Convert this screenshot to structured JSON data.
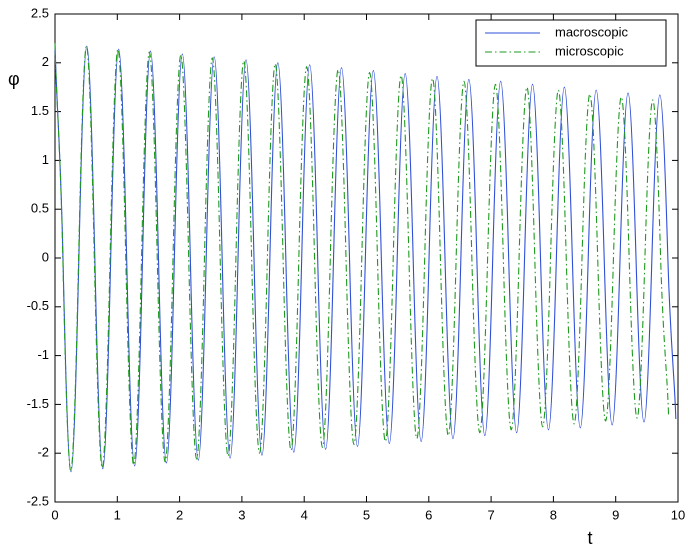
{
  "chart_data": {
    "type": "line",
    "xlabel": "t",
    "ylabel": "φ",
    "xlim": [
      0,
      10
    ],
    "ylim": [
      -2.5,
      2.5
    ],
    "xticks": [
      0,
      1,
      2,
      3,
      4,
      5,
      6,
      7,
      8,
      9,
      10
    ],
    "yticks": [
      -2.5,
      -2,
      -1.5,
      -1,
      -0.5,
      0,
      0.5,
      1,
      1.5,
      2,
      2.5
    ],
    "legend": "upper right",
    "series": [
      {
        "name": "macroscopic",
        "color": "#2f4fd8",
        "style": "solid",
        "x": [
          0,
          0.128,
          0.256,
          0.383,
          0.511,
          0.639,
          0.767,
          0.894,
          1.022,
          1.15,
          1.278,
          1.405,
          1.533,
          1.661,
          1.789,
          1.916,
          2.044,
          2.172,
          2.3,
          2.427,
          2.555,
          2.683,
          2.811,
          2.938,
          3.066,
          3.194,
          3.322,
          3.449,
          3.577,
          3.705,
          3.833,
          3.96,
          4.088,
          4.216,
          4.344,
          4.471,
          4.599,
          4.727,
          4.855,
          4.982,
          5.11,
          5.238,
          5.366,
          5.493,
          5.621,
          5.749,
          5.877,
          6.004,
          6.132,
          6.26,
          6.388,
          6.515,
          6.643,
          6.771,
          6.899,
          7.026,
          7.154,
          7.282,
          7.41,
          7.537,
          7.665,
          7.793,
          7.921,
          8.048,
          8.176,
          8.304,
          8.432,
          8.559,
          8.687,
          8.815,
          8.943,
          9.07,
          9.198,
          9.326,
          9.454,
          9.581,
          9.709,
          9.837,
          9.965
        ],
        "values": [
          2.2,
          0,
          -2.19,
          0,
          2.17,
          0,
          -2.16,
          0,
          2.14,
          0,
          -2.13,
          0,
          2.12,
          0,
          -2.1,
          0,
          2.09,
          0,
          -2.07,
          0,
          2.06,
          0,
          -2.05,
          0,
          2.03,
          0,
          -2.02,
          0,
          2.0,
          0,
          -1.99,
          0,
          1.98,
          0,
          -1.96,
          0,
          1.95,
          0,
          -1.93,
          0,
          1.92,
          0,
          -1.9,
          0,
          1.89,
          0,
          -1.88,
          0,
          1.86,
          0,
          -1.85,
          0,
          1.83,
          0,
          -1.82,
          0,
          1.81,
          0,
          -1.79,
          0,
          1.78,
          0,
          -1.76,
          0,
          1.75,
          0,
          -1.74,
          0,
          1.72,
          0,
          -1.71,
          0,
          1.69,
          0,
          -1.68,
          0,
          1.67,
          0,
          -1.65
        ]
      },
      {
        "name": "microscopic",
        "color": "#1f9a1f",
        "style": "dashdot",
        "x": [
          0,
          0.126,
          0.253,
          0.379,
          0.505,
          0.631,
          0.758,
          0.884,
          1.01,
          1.136,
          1.263,
          1.389,
          1.515,
          1.641,
          1.768,
          1.894,
          2.02,
          2.146,
          2.273,
          2.399,
          2.525,
          2.651,
          2.778,
          2.904,
          3.03,
          3.156,
          3.283,
          3.409,
          3.535,
          3.661,
          3.788,
          3.914,
          4.04,
          4.166,
          4.293,
          4.419,
          4.545,
          4.671,
          4.798,
          4.924,
          5.05,
          5.176,
          5.303,
          5.429,
          5.555,
          5.681,
          5.808,
          5.934,
          6.06,
          6.186,
          6.313,
          6.439,
          6.565,
          6.691,
          6.818,
          6.944,
          7.07,
          7.196,
          7.323,
          7.449,
          7.575,
          7.701,
          7.828,
          7.954,
          8.08,
          8.206,
          8.333,
          8.459,
          8.585,
          8.711,
          8.838,
          8.964,
          9.09,
          9.216,
          9.343,
          9.469,
          9.595,
          9.721,
          9.848
        ],
        "values": [
          2.2,
          0,
          -2.18,
          0,
          2.17,
          0,
          -2.15,
          0,
          2.14,
          0,
          -2.12,
          0,
          2.11,
          0,
          -2.09,
          0,
          2.08,
          0,
          -2.06,
          0,
          2.05,
          0,
          -2.03,
          0,
          2.02,
          0,
          -2.0,
          0,
          1.99,
          0,
          -1.97,
          0,
          1.96,
          0,
          -1.94,
          0,
          1.93,
          0,
          -1.91,
          0,
          1.9,
          0,
          -1.88,
          0,
          1.87,
          0,
          -1.85,
          0,
          1.84,
          0,
          -1.82,
          0,
          1.81,
          0,
          -1.79,
          0,
          1.78,
          0,
          -1.76,
          0,
          1.75,
          0,
          -1.73,
          0,
          1.72,
          0,
          -1.7,
          0,
          1.68,
          0,
          -1.67,
          0,
          1.65,
          0,
          -1.64,
          0,
          1.62,
          0,
          -1.61
        ]
      }
    ]
  }
}
